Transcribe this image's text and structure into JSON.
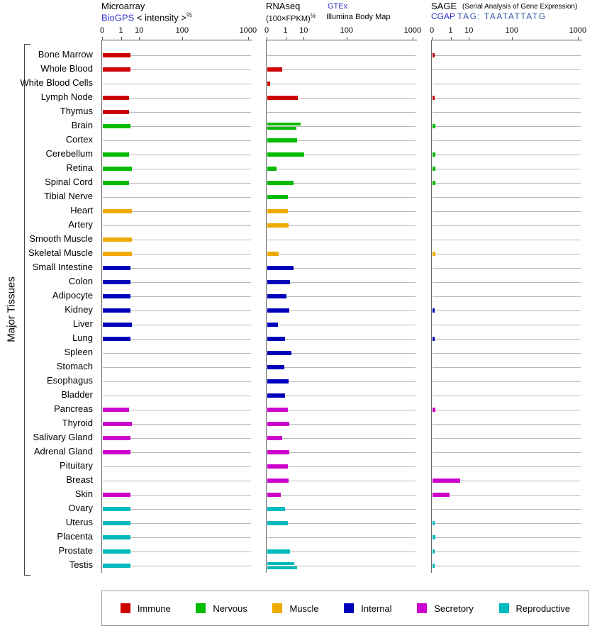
{
  "header": {
    "microarray": {
      "title": "Microarray",
      "link": "BioGPS",
      "subtitle": " < intensity >",
      "exponent": "⅔"
    },
    "rnaseq": {
      "title": "RNAseq",
      "link": "GTEx",
      "formula": "(100×FPKM)",
      "exponent": "½",
      "source": "Illumina Body Map"
    },
    "sage": {
      "title": "SAGE",
      "subtitle": "(Serial Analysis of Gene Expression)",
      "link": "CGAP",
      "tag": "TAG: TAATATTATG"
    }
  },
  "y_axis_label": "Major Tissues",
  "axis": {
    "ticks": [
      "0",
      "1",
      "10",
      "100",
      "1000"
    ]
  },
  "legend": [
    {
      "label": "Immune",
      "color": "#cc0000"
    },
    {
      "label": "Nervous",
      "color": "#00bb00"
    },
    {
      "label": "Muscle",
      "color": "#eeaa00"
    },
    {
      "label": "Internal",
      "color": "#0000bb"
    },
    {
      "label": "Secretory",
      "color": "#cc00cc"
    },
    {
      "label": "Reproductive",
      "color": "#00bbbb"
    }
  ],
  "chart_data": {
    "type": "bar",
    "orientation": "horizontal",
    "panels": [
      "Microarray",
      "RNAseq",
      "SAGE"
    ],
    "x_ticks": [
      0,
      1,
      10,
      100,
      1000
    ],
    "x_scale": "compressed log-like scale with ticks 0,1,10,100,1000",
    "grid": "one horizontal gray baseline per tissue row",
    "legend_position": "bottom",
    "rows": [
      {
        "tissue": "Bone Marrow",
        "group": "Immune",
        "microarray": 3,
        "rnaseq": [],
        "sage": 0.1
      },
      {
        "tissue": "Whole Blood",
        "group": "Immune",
        "microarray": 3,
        "rnaseq": [
          0.8
        ],
        "sage": null
      },
      {
        "tissue": "White Blood Cells",
        "group": "Immune",
        "microarray": null,
        "rnaseq": [
          0.15
        ],
        "sage": null
      },
      {
        "tissue": "Lymph Node",
        "group": "Immune",
        "microarray": 2.5,
        "rnaseq": [
          4.5
        ],
        "sage": 0.1
      },
      {
        "tissue": "Thymus",
        "group": "Immune",
        "microarray": 2.5,
        "rnaseq": [],
        "sage": null
      },
      {
        "tissue": "Brain",
        "group": "Nervous",
        "microarray": 3,
        "rnaseq": [
          6,
          3.5
        ],
        "sage": 0.15
      },
      {
        "tissue": "Cortex",
        "group": "Nervous",
        "microarray": null,
        "rnaseq": [
          4
        ],
        "sage": null
      },
      {
        "tissue": "Cerebellum",
        "group": "Nervous",
        "microarray": 2.5,
        "rnaseq": [
          10
        ],
        "sage": 0.15
      },
      {
        "tissue": "Retina",
        "group": "Nervous",
        "microarray": 3.5,
        "rnaseq": [
          0.5
        ],
        "sage": 0.15
      },
      {
        "tissue": "Spinal Cord",
        "group": "Nervous",
        "microarray": 2.5,
        "rnaseq": [
          2.5
        ],
        "sage": 0.15
      },
      {
        "tissue": "Tibial Nerve",
        "group": "Nervous",
        "microarray": null,
        "rnaseq": [
          1.2
        ],
        "sage": null
      },
      {
        "tissue": "Heart",
        "group": "Muscle",
        "microarray": 3.5,
        "rnaseq": [
          1.2
        ],
        "sage": null
      },
      {
        "tissue": "Artery",
        "group": "Muscle",
        "microarray": null,
        "rnaseq": [
          1.4
        ],
        "sage": null
      },
      {
        "tissue": "Smooth Muscle",
        "group": "Muscle",
        "microarray": 3.5,
        "rnaseq": [],
        "sage": null
      },
      {
        "tissue": "Skeletal Muscle",
        "group": "Muscle",
        "microarray": 3.5,
        "rnaseq": [
          0.6
        ],
        "sage": 0.15
      },
      {
        "tissue": "Small Intestine",
        "group": "Internal",
        "microarray": 3,
        "rnaseq": [
          2.5
        ],
        "sage": null
      },
      {
        "tissue": "Colon",
        "group": "Internal",
        "microarray": 3,
        "rnaseq": [
          1.6
        ],
        "sage": null
      },
      {
        "tissue": "Adipocyte",
        "group": "Internal",
        "microarray": 3,
        "rnaseq": [
          1.0
        ],
        "sage": null
      },
      {
        "tissue": "Kidney",
        "group": "Internal",
        "microarray": 3,
        "rnaseq": [
          1.5
        ],
        "sage": 0.1
      },
      {
        "tissue": "Liver",
        "group": "Internal",
        "microarray": 3.5,
        "rnaseq": [
          0.55
        ],
        "sage": null
      },
      {
        "tissue": "Lung",
        "group": "Internal",
        "microarray": 3,
        "rnaseq": [
          0.95
        ],
        "sage": 0.1
      },
      {
        "tissue": "Spleen",
        "group": "Internal",
        "microarray": null,
        "rnaseq": [
          2.0
        ],
        "sage": null
      },
      {
        "tissue": "Stomach",
        "group": "Internal",
        "microarray": null,
        "rnaseq": [
          0.9
        ],
        "sage": null
      },
      {
        "tissue": "Esophagus",
        "group": "Internal",
        "microarray": null,
        "rnaseq": [
          1.4
        ],
        "sage": null
      },
      {
        "tissue": "Bladder",
        "group": "Internal",
        "microarray": null,
        "rnaseq": [
          0.95
        ],
        "sage": null
      },
      {
        "tissue": "Pancreas",
        "group": "Secretory",
        "microarray": 2.5,
        "rnaseq": [
          1.3
        ],
        "sage": 0.15
      },
      {
        "tissue": "Thyroid",
        "group": "Secretory",
        "microarray": 3.5,
        "rnaseq": [
          1.5
        ],
        "sage": null
      },
      {
        "tissue": "Salivary Gland",
        "group": "Secretory",
        "microarray": 3,
        "rnaseq": [
          0.8
        ],
        "sage": null
      },
      {
        "tissue": "Adrenal Gland",
        "group": "Secretory",
        "microarray": 3,
        "rnaseq": [
          1.5
        ],
        "sage": null
      },
      {
        "tissue": "Pituitary",
        "group": "Secretory",
        "microarray": null,
        "rnaseq": [
          1.3
        ],
        "sage": null
      },
      {
        "tissue": "Breast",
        "group": "Secretory",
        "microarray": null,
        "rnaseq": [
          1.4
        ],
        "sage": 3
      },
      {
        "tissue": "Skin",
        "group": "Secretory",
        "microarray": 3,
        "rnaseq": [
          0.7
        ],
        "sage": 0.9
      },
      {
        "tissue": "Ovary",
        "group": "Reproductive",
        "microarray": 3,
        "rnaseq": [
          0.95
        ],
        "sage": null
      },
      {
        "tissue": "Uterus",
        "group": "Reproductive",
        "microarray": 3,
        "rnaseq": [
          1.3
        ],
        "sage": 0.1
      },
      {
        "tissue": "Placenta",
        "group": "Reproductive",
        "microarray": 3,
        "rnaseq": [],
        "sage": 0.15
      },
      {
        "tissue": "Prostate",
        "group": "Reproductive",
        "microarray": 3,
        "rnaseq": [
          1.6
        ],
        "sage": 0.1
      },
      {
        "tissue": "Testis",
        "group": "Reproductive",
        "microarray": 3,
        "rnaseq": [
          2.7,
          4
        ],
        "sage": 0.1
      }
    ]
  }
}
